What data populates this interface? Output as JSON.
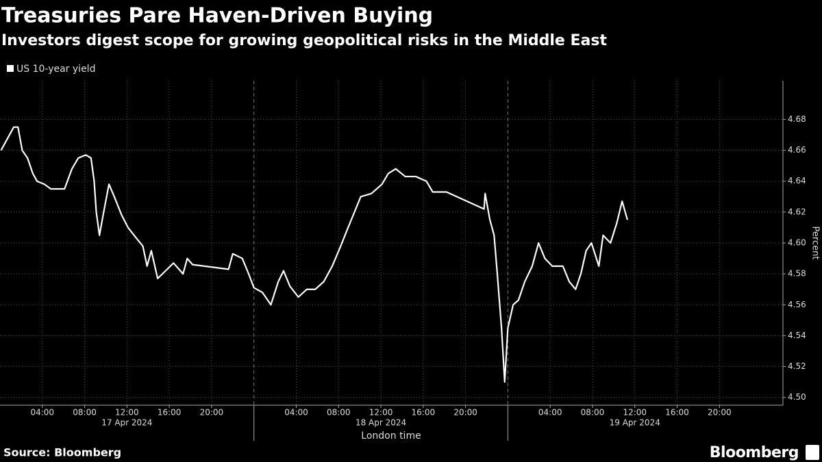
{
  "chart_data": {
    "type": "line",
    "title": "Treasuries Pare Haven-Driven Buying",
    "subtitle": "Investors digest scope for growing geopolitical risks in the Middle East",
    "ylabel": "Percent",
    "xlabel": "London time",
    "source": "Source: Bloomberg",
    "brand": "Bloomberg",
    "grid": true,
    "x": [
      0.1,
      1.3,
      1.7,
      2.1,
      2.6,
      3.1,
      3.5,
      4.2,
      4.8,
      6.1,
      6.8,
      7.4,
      8.1,
      8.6,
      8.9,
      9.1,
      9.4,
      9.8,
      10.3,
      10.8,
      11.5,
      12.1,
      12.9,
      13.5,
      13.9,
      14.3,
      14.9,
      15.8,
      16.4,
      17.3,
      17.7,
      18.2,
      21.6,
      22.0,
      22.9,
      23.5,
      24.0,
      24.8,
      25.6,
      26.3,
      26.8,
      27.4,
      28.2,
      29.0,
      29.8,
      30.6,
      31.4,
      32.2,
      32.9,
      33.5,
      34.1,
      35.1,
      36.1,
      36.7,
      37.4,
      38.3,
      39.3,
      40.3,
      40.9,
      42.2,
      45.75,
      45.85,
      46.3,
      46.7,
      47.0,
      47.4,
      47.7,
      48.0,
      48.5,
      49.0,
      49.6,
      50.3,
      50.9,
      51.5,
      52.2,
      53.2,
      53.8,
      54.4,
      54.9,
      55.4,
      55.9,
      56.6,
      57.0,
      57.7,
      58.3,
      58.8,
      59.3
    ],
    "series": [
      {
        "name": "US 10-year yield",
        "color": "#ffffff",
        "values": [
          4.66,
          4.675,
          4.675,
          4.66,
          4.655,
          4.645,
          4.64,
          4.638,
          4.635,
          4.635,
          4.648,
          4.655,
          4.657,
          4.655,
          4.64,
          4.62,
          4.605,
          4.62,
          4.638,
          4.63,
          4.618,
          4.61,
          4.603,
          4.598,
          4.585,
          4.595,
          4.577,
          4.583,
          4.587,
          4.58,
          4.59,
          4.586,
          4.583,
          4.593,
          4.59,
          4.58,
          4.571,
          4.568,
          4.56,
          4.575,
          4.582,
          4.572,
          4.565,
          4.57,
          4.57,
          4.575,
          4.585,
          4.598,
          4.61,
          4.62,
          4.63,
          4.632,
          4.638,
          4.645,
          4.648,
          4.643,
          4.643,
          4.64,
          4.633,
          4.633,
          4.622,
          4.632,
          4.615,
          4.605,
          4.58,
          4.545,
          4.51,
          4.545,
          4.56,
          4.563,
          4.575,
          4.585,
          4.6,
          4.59,
          4.585,
          4.585,
          4.575,
          4.57,
          4.58,
          4.595,
          4.6,
          4.585,
          4.605,
          4.6,
          4.613,
          4.627,
          4.615
        ]
      }
    ],
    "xlim": [
      0,
      74
    ],
    "xticks": [
      {
        "value": 4,
        "label": "04:00"
      },
      {
        "value": 8,
        "label": "08:00"
      },
      {
        "value": 12,
        "label": "12:00"
      },
      {
        "value": 16,
        "label": "16:00"
      },
      {
        "value": 20,
        "label": "20:00"
      },
      {
        "value": 28,
        "label": "04:00"
      },
      {
        "value": 32,
        "label": "08:00"
      },
      {
        "value": 36,
        "label": "12:00"
      },
      {
        "value": 40,
        "label": "16:00"
      },
      {
        "value": 44,
        "label": "20:00"
      },
      {
        "value": 52,
        "label": "04:00"
      },
      {
        "value": 56,
        "label": "08:00"
      },
      {
        "value": 60,
        "label": "12:00"
      },
      {
        "value": 64,
        "label": "16:00"
      },
      {
        "value": 68,
        "label": "20:00"
      }
    ],
    "date_labels": [
      {
        "value": 12,
        "label": "17 Apr 2024"
      },
      {
        "value": 36,
        "label": "18 Apr 2024"
      },
      {
        "value": 60,
        "label": "19 Apr 2024"
      }
    ],
    "ylim": [
      4.495,
      4.705
    ],
    "yticks": [
      {
        "value": 4.5,
        "label": "4.50"
      },
      4.52,
      4.54,
      4.56,
      4.58,
      {
        "value": 4.6,
        "label": "4.60"
      },
      4.62,
      4.64,
      4.66,
      4.68
    ]
  }
}
